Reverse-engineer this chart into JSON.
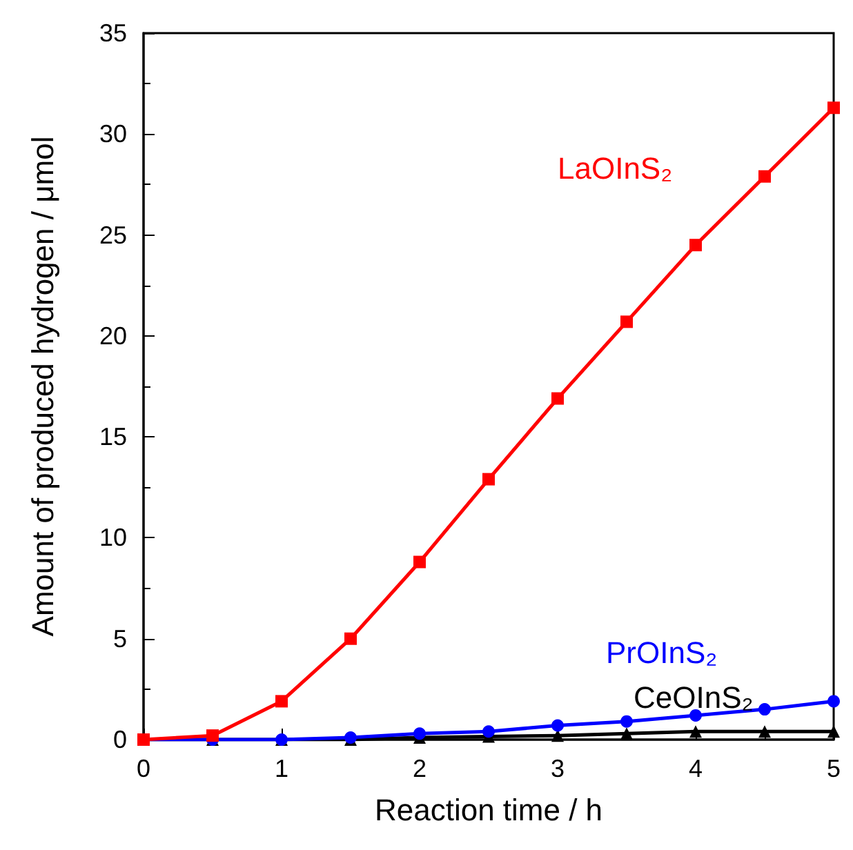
{
  "chart_data": {
    "type": "line",
    "xlabel": "Reaction time / h",
    "ylabel": "Amount of produced hydrogen / μmol",
    "x": [
      0,
      0.5,
      1,
      1.5,
      2,
      2.5,
      3,
      3.5,
      4,
      4.5,
      5
    ],
    "xlim": [
      0,
      5
    ],
    "xticks": [
      0,
      1,
      2,
      3,
      4,
      5
    ],
    "ylim": [
      0,
      35
    ],
    "yticks": [
      0,
      5,
      10,
      15,
      20,
      25,
      30,
      35
    ],
    "grid": false,
    "legend": false,
    "line_style": "solid",
    "series": [
      {
        "name": "LaOInS₂",
        "color": "#ff0000",
        "marker": "square",
        "values": [
          0,
          0.2,
          1.9,
          5.0,
          8.8,
          12.9,
          16.9,
          20.7,
          24.5,
          27.9,
          31.3
        ]
      },
      {
        "name": "PrOInS₂",
        "color": "#0000ff",
        "marker": "circle",
        "values": [
          0,
          0,
          0,
          0.1,
          0.3,
          0.4,
          0.7,
          0.9,
          1.2,
          1.5,
          1.9
        ]
      },
      {
        "name": "CeOInS₂",
        "color": "#000000",
        "marker": "triangle",
        "values": [
          0,
          0,
          0,
          0,
          0.1,
          0.15,
          0.2,
          0.3,
          0.4,
          0.4,
          0.4
        ]
      }
    ]
  }
}
